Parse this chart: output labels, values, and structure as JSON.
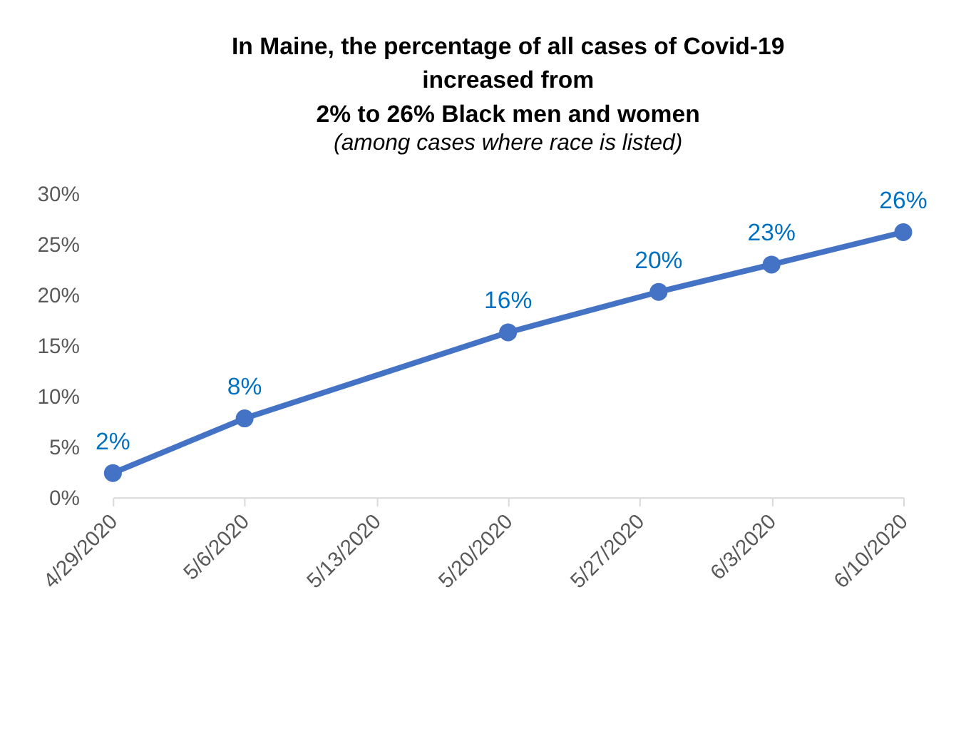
{
  "chart_data": {
    "type": "line",
    "title": "In Maine, the percentage of all cases of Covid-19\nincreased from\n2% to 26% Black men and women",
    "subtitle": "(among cases where race is listed)",
    "x": [
      "2020-04-29",
      "2020-05-06",
      "2020-05-20",
      "2020-05-28",
      "2020-06-03",
      "2020-06-10"
    ],
    "series": [
      {
        "color": "#4472c4",
        "values": [
          2.4,
          7.8,
          16.3,
          20.3,
          23.0,
          26.2
        ],
        "value_labels": [
          "2%",
          "8%",
          "16%",
          "20%",
          "23%",
          "26%"
        ]
      }
    ],
    "xlim": [
      "2020-04-29",
      "2020-06-10"
    ],
    "xticks": [
      {
        "value": "2020-04-29",
        "label": "4/29/2020"
      },
      {
        "value": "2020-05-06",
        "label": "5/6/2020"
      },
      {
        "value": "2020-05-13",
        "label": "5/13/2020"
      },
      {
        "value": "2020-05-20",
        "label": "5/20/2020"
      },
      {
        "value": "2020-05-27",
        "label": "5/27/2020"
      },
      {
        "value": "2020-06-03",
        "label": "6/3/2020"
      },
      {
        "value": "2020-06-10",
        "label": "6/10/2020"
      }
    ],
    "ylim": [
      0,
      30
    ],
    "yticks": [
      {
        "value": 0,
        "label": "0%"
      },
      {
        "value": 5,
        "label": "5%"
      },
      {
        "value": 10,
        "label": "10%"
      },
      {
        "value": 15,
        "label": "15%"
      },
      {
        "value": 20,
        "label": "20%"
      },
      {
        "value": 25,
        "label": "25%"
      },
      {
        "value": 30,
        "label": "30%"
      }
    ],
    "grid": false,
    "marker": "circle",
    "line_style": "solid"
  }
}
